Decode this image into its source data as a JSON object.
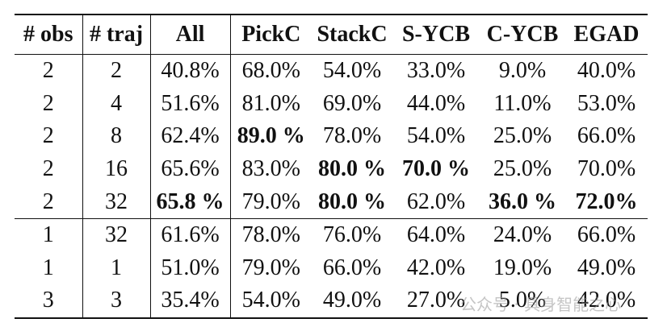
{
  "table": {
    "header": [
      "# obs",
      "# traj",
      "All",
      "PickC",
      "StackC",
      "S-YCB",
      "C-YCB",
      "EGAD"
    ],
    "row_groups": [
      [
        [
          "2",
          "2",
          "40.8%",
          "68.0%",
          "54.0%",
          "33.0%",
          "9.0%",
          "40.0%"
        ],
        [
          "2",
          "4",
          "51.6%",
          "81.0%",
          "69.0%",
          "44.0%",
          "11.0%",
          "53.0%"
        ],
        [
          "2",
          "8",
          "62.4%",
          {
            "text": "89.0 %",
            "bold": true
          },
          "78.0%",
          "54.0%",
          "25.0%",
          "66.0%"
        ],
        [
          "2",
          "16",
          "65.6%",
          "83.0%",
          {
            "text": "80.0 %",
            "bold": true
          },
          {
            "text": "70.0 %",
            "bold": true
          },
          "25.0%",
          "70.0%"
        ],
        [
          "2",
          "32",
          {
            "text": "65.8 %",
            "bold": true
          },
          "79.0%",
          {
            "text": "80.0 %",
            "bold": true
          },
          "62.0%",
          {
            "text": "36.0 %",
            "bold": true
          },
          {
            "text": "72.0%",
            "bold": true
          }
        ]
      ],
      [
        [
          "1",
          "32",
          "61.6%",
          "78.0%",
          "76.0%",
          "64.0%",
          "24.0%",
          "66.0%"
        ],
        [
          "1",
          "1",
          "51.0%",
          "79.0%",
          "66.0%",
          "42.0%",
          "19.0%",
          "49.0%"
        ],
        [
          "3",
          "3",
          "35.4%",
          "54.0%",
          "49.0%",
          "27.0%",
          "5.0%",
          "42.0%"
        ]
      ]
    ]
  },
  "watermark": "公众号 · 具身智能之心"
}
